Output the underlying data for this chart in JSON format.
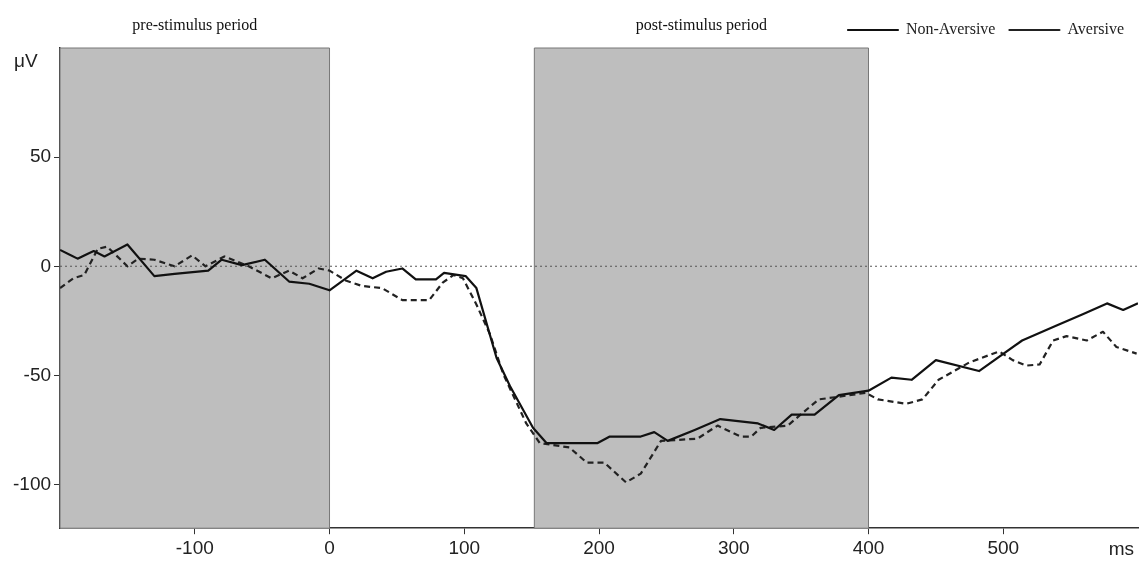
{
  "chart_data": {
    "type": "line",
    "xlabel": "ms",
    "ylabel": "μV",
    "xlim": [
      -200,
      600
    ],
    "ylim": [
      -120,
      100
    ],
    "xticks": [
      -100,
      0,
      100,
      200,
      300,
      400,
      500
    ],
    "yticks": [
      -100,
      -50,
      0,
      50
    ],
    "grid": false,
    "legend": "top right",
    "marker": "none",
    "bands": [
      {
        "axis": "x",
        "from": -200,
        "to": 0,
        "label": "pre-stimulus period",
        "color": "#bebebe"
      },
      {
        "axis": "x",
        "from": 152,
        "to": 400,
        "label": "post-stimulus period",
        "color": "#bebebe"
      }
    ],
    "ref_lines": [
      {
        "axis": "y",
        "value": 0,
        "label": null,
        "line_style": "dotted",
        "color": "#555555"
      }
    ],
    "series": [
      {
        "name": "Non-Aversive",
        "color": "#111111",
        "line_style": "solid",
        "x": [
          -200,
          -187,
          -175,
          -167,
          -150,
          -130,
          -115,
          -90,
          -80,
          -65,
          -48,
          -30,
          -15,
          0,
          20,
          32,
          42,
          54,
          64,
          79,
          85,
          101,
          109,
          124,
          134,
          151,
          161,
          199,
          208,
          231,
          241,
          251,
          271,
          290,
          318,
          330,
          343,
          360,
          378,
          400,
          417,
          432,
          450,
          482,
          514,
          540,
          559,
          577,
          589,
          600
        ],
        "values": [
          7.5,
          3.5,
          7,
          4.5,
          10,
          -4.5,
          -3.5,
          -2,
          3,
          0.5,
          3,
          -7,
          -8,
          -11,
          -2,
          -5.5,
          -2.5,
          -1,
          -6,
          -6,
          -3,
          -4.5,
          -10,
          -42,
          -55,
          -74,
          -81,
          -81,
          -78,
          -78,
          -76,
          -80,
          -75,
          -70,
          -72,
          -75,
          -68,
          -68,
          -59,
          -57,
          -51,
          -52,
          -43,
          -48,
          -34,
          -27,
          -22,
          -17,
          -20,
          -17
        ]
      },
      {
        "name": "Aversive",
        "color": "#222222",
        "line_style": "dashed",
        "x": [
          -200,
          -190,
          -182,
          -172,
          -165,
          -150,
          -142,
          -130,
          -115,
          -102,
          -92,
          -78,
          -60,
          -43,
          -30,
          -20,
          -8,
          0,
          12,
          24,
          39,
          54,
          74,
          84,
          92,
          99,
          109,
          119,
          129,
          146,
          156,
          178,
          191,
          204,
          220,
          231,
          246,
          273,
          288,
          305,
          313,
          320,
          340,
          363,
          375,
          398,
          407,
          428,
          440,
          452,
          475,
          497,
          507,
          517,
          527,
          537,
          547,
          562,
          574,
          584,
          599
        ],
        "values": [
          -10,
          -5.5,
          -4,
          8,
          9,
          0,
          3.5,
          3,
          0,
          5,
          0,
          4.5,
          0,
          -5.5,
          -2,
          -5.5,
          -1,
          -2,
          -6.5,
          -9,
          -10,
          -15.5,
          -15.5,
          -7.5,
          -4,
          -5.5,
          -17.5,
          -31,
          -49.5,
          -72,
          -81,
          -83,
          -90,
          -90,
          -99,
          -95,
          -80,
          -79,
          -73,
          -78,
          -78,
          -74,
          -73,
          -61,
          -60,
          -58,
          -61,
          -63,
          -61,
          -52,
          -44,
          -39,
          -43,
          -45.5,
          -45,
          -34,
          -32,
          -34,
          -30,
          -37,
          -40
        ]
      }
    ]
  }
}
